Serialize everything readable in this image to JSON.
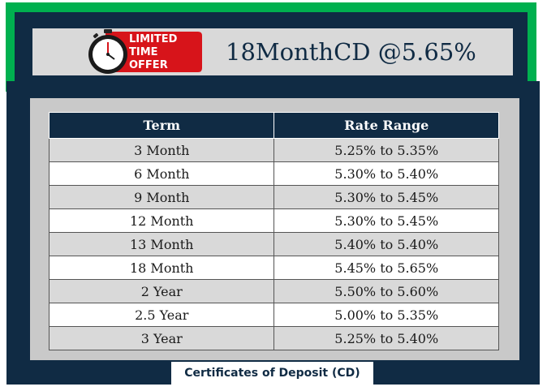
{
  "header": {
    "badge_lines": [
      "LIMITED",
      "TIME",
      "OFFER"
    ],
    "headline": "18MonthCD @5.65%"
  },
  "table": {
    "columns": [
      "Term",
      "Rate Range"
    ],
    "rows": [
      {
        "term": "3 Month",
        "rate": "5.25% to 5.35%"
      },
      {
        "term": "6 Month",
        "rate": "5.30% to 5.40%"
      },
      {
        "term": "9 Month",
        "rate": "5.30% to 5.45%"
      },
      {
        "term": "12 Month",
        "rate": "5.30% to 5.45%"
      },
      {
        "term": "13 Month",
        "rate": "5.40% to 5.40%"
      },
      {
        "term": "18 Month",
        "rate": "5.45% to 5.65%"
      },
      {
        "term": "2 Year",
        "rate": "5.50% to 5.60%"
      },
      {
        "term": "2.5 Year",
        "rate": "5.00% to 5.35%"
      },
      {
        "term": "3 Year",
        "rate": "5.25% to 5.40%"
      }
    ]
  },
  "footer": {
    "label": "Certificates of Deposit (CD)"
  },
  "colors": {
    "navy": "#102b44",
    "green": "#00b04f",
    "badge_red": "#d7141a",
    "panel_gray": "#d9d9d9"
  }
}
